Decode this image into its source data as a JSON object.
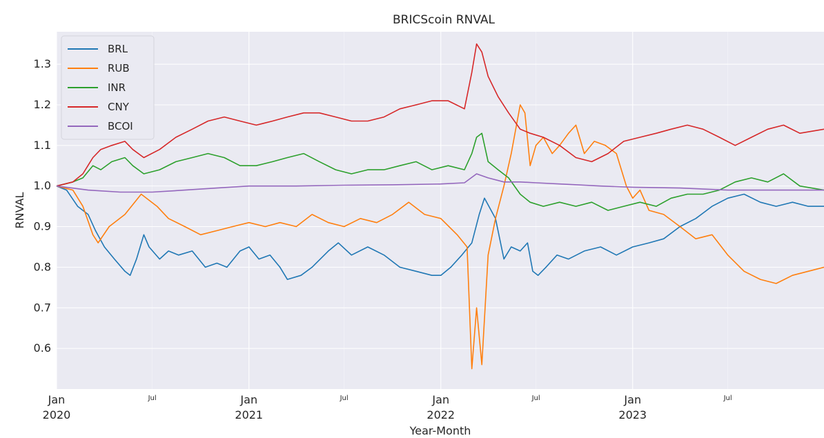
{
  "chart_data": {
    "type": "line",
    "title": "BRICScoin RNVAL",
    "xlabel": "Year-Month",
    "ylabel": "RNVAL",
    "xlim": [
      "2020-01-01",
      "2023-12-31"
    ],
    "ylim": [
      0.5,
      1.38
    ],
    "grid": true,
    "legend_position": "top-left",
    "y_ticks": [
      "0.6",
      "0.7",
      "0.8",
      "0.9",
      "1.0",
      "1.1",
      "1.2",
      "1.3"
    ],
    "x_major_ticks": [
      {
        "date": "2020-01-01",
        "line1": "Jan",
        "line2": "2020"
      },
      {
        "date": "2021-01-01",
        "line1": "Jan",
        "line2": "2021"
      },
      {
        "date": "2022-01-01",
        "line1": "Jan",
        "line2": "2022"
      },
      {
        "date": "2023-01-01",
        "line1": "Jan",
        "line2": "2023"
      }
    ],
    "x_minor_ticks": [
      {
        "date": "2020-07-01",
        "label": "Jul"
      },
      {
        "date": "2021-07-01",
        "label": "Jul"
      },
      {
        "date": "2022-07-01",
        "label": "Jul"
      },
      {
        "date": "2023-07-01",
        "label": "Jul"
      }
    ],
    "series": [
      {
        "name": "BRL",
        "color": "#1f77b4",
        "points": [
          [
            "2020-01-01",
            1.0
          ],
          [
            "2020-01-20",
            0.99
          ],
          [
            "2020-02-10",
            0.95
          ],
          [
            "2020-03-01",
            0.93
          ],
          [
            "2020-03-15",
            0.89
          ],
          [
            "2020-04-01",
            0.85
          ],
          [
            "2020-04-20",
            0.82
          ],
          [
            "2020-05-10",
            0.79
          ],
          [
            "2020-05-20",
            0.78
          ],
          [
            "2020-06-01",
            0.82
          ],
          [
            "2020-06-15",
            0.88
          ],
          [
            "2020-06-25",
            0.85
          ],
          [
            "2020-07-15",
            0.82
          ],
          [
            "2020-08-01",
            0.84
          ],
          [
            "2020-08-20",
            0.83
          ],
          [
            "2020-09-15",
            0.84
          ],
          [
            "2020-10-10",
            0.8
          ],
          [
            "2020-11-01",
            0.81
          ],
          [
            "2020-11-20",
            0.8
          ],
          [
            "2020-12-15",
            0.84
          ],
          [
            "2021-01-01",
            0.85
          ],
          [
            "2021-01-20",
            0.82
          ],
          [
            "2021-02-10",
            0.83
          ],
          [
            "2021-03-01",
            0.8
          ],
          [
            "2021-03-15",
            0.77
          ],
          [
            "2021-04-10",
            0.78
          ],
          [
            "2021-05-01",
            0.8
          ],
          [
            "2021-06-01",
            0.84
          ],
          [
            "2021-06-20",
            0.86
          ],
          [
            "2021-07-15",
            0.83
          ],
          [
            "2021-08-15",
            0.85
          ],
          [
            "2021-09-15",
            0.83
          ],
          [
            "2021-10-15",
            0.8
          ],
          [
            "2021-11-15",
            0.79
          ],
          [
            "2021-12-15",
            0.78
          ],
          [
            "2022-01-01",
            0.78
          ],
          [
            "2022-01-20",
            0.8
          ],
          [
            "2022-02-10",
            0.83
          ],
          [
            "2022-03-01",
            0.86
          ],
          [
            "2022-03-15",
            0.93
          ],
          [
            "2022-03-25",
            0.97
          ],
          [
            "2022-04-15",
            0.92
          ],
          [
            "2022-05-01",
            0.82
          ],
          [
            "2022-05-15",
            0.85
          ],
          [
            "2022-06-01",
            0.84
          ],
          [
            "2022-06-15",
            0.86
          ],
          [
            "2022-06-25",
            0.79
          ],
          [
            "2022-07-05",
            0.78
          ],
          [
            "2022-07-20",
            0.8
          ],
          [
            "2022-08-10",
            0.83
          ],
          [
            "2022-09-01",
            0.82
          ],
          [
            "2022-10-01",
            0.84
          ],
          [
            "2022-11-01",
            0.85
          ],
          [
            "2022-12-01",
            0.83
          ],
          [
            "2023-01-01",
            0.85
          ],
          [
            "2023-02-01",
            0.86
          ],
          [
            "2023-03-01",
            0.87
          ],
          [
            "2023-04-01",
            0.9
          ],
          [
            "2023-05-01",
            0.92
          ],
          [
            "2023-06-01",
            0.95
          ],
          [
            "2023-07-01",
            0.97
          ],
          [
            "2023-08-01",
            0.98
          ],
          [
            "2023-09-01",
            0.96
          ],
          [
            "2023-10-01",
            0.95
          ],
          [
            "2023-11-01",
            0.96
          ],
          [
            "2023-12-01",
            0.95
          ],
          [
            "2023-12-31",
            0.95
          ]
        ]
      },
      {
        "name": "RUB",
        "color": "#ff7f0e",
        "points": [
          [
            "2020-01-01",
            1.0
          ],
          [
            "2020-02-01",
            0.99
          ],
          [
            "2020-02-20",
            0.95
          ],
          [
            "2020-03-10",
            0.88
          ],
          [
            "2020-03-20",
            0.86
          ],
          [
            "2020-04-10",
            0.9
          ],
          [
            "2020-05-10",
            0.93
          ],
          [
            "2020-06-10",
            0.98
          ],
          [
            "2020-07-10",
            0.95
          ],
          [
            "2020-08-01",
            0.92
          ],
          [
            "2020-09-01",
            0.9
          ],
          [
            "2020-10-01",
            0.88
          ],
          [
            "2020-11-01",
            0.89
          ],
          [
            "2020-12-01",
            0.9
          ],
          [
            "2021-01-01",
            0.91
          ],
          [
            "2021-02-01",
            0.9
          ],
          [
            "2021-03-01",
            0.91
          ],
          [
            "2021-04-01",
            0.9
          ],
          [
            "2021-05-01",
            0.93
          ],
          [
            "2021-06-01",
            0.91
          ],
          [
            "2021-07-01",
            0.9
          ],
          [
            "2021-08-01",
            0.92
          ],
          [
            "2021-09-01",
            0.91
          ],
          [
            "2021-10-01",
            0.93
          ],
          [
            "2021-11-01",
            0.96
          ],
          [
            "2021-12-01",
            0.93
          ],
          [
            "2022-01-01",
            0.92
          ],
          [
            "2022-02-01",
            0.88
          ],
          [
            "2022-02-20",
            0.85
          ],
          [
            "2022-03-01",
            0.55
          ],
          [
            "2022-03-10",
            0.7
          ],
          [
            "2022-03-20",
            0.56
          ],
          [
            "2022-04-01",
            0.83
          ],
          [
            "2022-04-15",
            0.92
          ],
          [
            "2022-05-01",
            1.0
          ],
          [
            "2022-05-15",
            1.08
          ],
          [
            "2022-06-01",
            1.2
          ],
          [
            "2022-06-10",
            1.18
          ],
          [
            "2022-06-20",
            1.05
          ],
          [
            "2022-07-01",
            1.1
          ],
          [
            "2022-07-15",
            1.12
          ],
          [
            "2022-08-01",
            1.08
          ],
          [
            "2022-08-15",
            1.1
          ],
          [
            "2022-09-01",
            1.13
          ],
          [
            "2022-09-15",
            1.15
          ],
          [
            "2022-10-01",
            1.08
          ],
          [
            "2022-10-20",
            1.11
          ],
          [
            "2022-11-10",
            1.1
          ],
          [
            "2022-12-01",
            1.08
          ],
          [
            "2022-12-20",
            1.0
          ],
          [
            "2023-01-01",
            0.97
          ],
          [
            "2023-01-15",
            0.99
          ],
          [
            "2023-02-01",
            0.94
          ],
          [
            "2023-03-01",
            0.93
          ],
          [
            "2023-04-01",
            0.9
          ],
          [
            "2023-05-01",
            0.87
          ],
          [
            "2023-06-01",
            0.88
          ],
          [
            "2023-07-01",
            0.83
          ],
          [
            "2023-08-01",
            0.79
          ],
          [
            "2023-09-01",
            0.77
          ],
          [
            "2023-10-01",
            0.76
          ],
          [
            "2023-11-01",
            0.78
          ],
          [
            "2023-12-01",
            0.79
          ],
          [
            "2023-12-31",
            0.8
          ]
        ]
      },
      {
        "name": "INR",
        "color": "#2ca02c",
        "points": [
          [
            "2020-01-01",
            1.0
          ],
          [
            "2020-02-01",
            1.01
          ],
          [
            "2020-02-20",
            1.02
          ],
          [
            "2020-03-10",
            1.05
          ],
          [
            "2020-03-25",
            1.04
          ],
          [
            "2020-04-15",
            1.06
          ],
          [
            "2020-05-10",
            1.07
          ],
          [
            "2020-05-25",
            1.05
          ],
          [
            "2020-06-15",
            1.03
          ],
          [
            "2020-07-15",
            1.04
          ],
          [
            "2020-08-15",
            1.06
          ],
          [
            "2020-09-15",
            1.07
          ],
          [
            "2020-10-15",
            1.08
          ],
          [
            "2020-11-15",
            1.07
          ],
          [
            "2020-12-15",
            1.05
          ],
          [
            "2021-01-15",
            1.05
          ],
          [
            "2021-02-15",
            1.06
          ],
          [
            "2021-03-15",
            1.07
          ],
          [
            "2021-04-15",
            1.08
          ],
          [
            "2021-05-15",
            1.06
          ],
          [
            "2021-06-15",
            1.04
          ],
          [
            "2021-07-15",
            1.03
          ],
          [
            "2021-08-15",
            1.04
          ],
          [
            "2021-09-15",
            1.04
          ],
          [
            "2021-10-15",
            1.05
          ],
          [
            "2021-11-15",
            1.06
          ],
          [
            "2021-12-15",
            1.04
          ],
          [
            "2022-01-15",
            1.05
          ],
          [
            "2022-02-15",
            1.04
          ],
          [
            "2022-03-01",
            1.08
          ],
          [
            "2022-03-10",
            1.12
          ],
          [
            "2022-03-20",
            1.13
          ],
          [
            "2022-04-01",
            1.06
          ],
          [
            "2022-04-20",
            1.04
          ],
          [
            "2022-05-10",
            1.02
          ],
          [
            "2022-06-01",
            0.98
          ],
          [
            "2022-06-20",
            0.96
          ],
          [
            "2022-07-15",
            0.95
          ],
          [
            "2022-08-15",
            0.96
          ],
          [
            "2022-09-15",
            0.95
          ],
          [
            "2022-10-15",
            0.96
          ],
          [
            "2022-11-15",
            0.94
          ],
          [
            "2022-12-15",
            0.95
          ],
          [
            "2023-01-15",
            0.96
          ],
          [
            "2023-02-15",
            0.95
          ],
          [
            "2023-03-15",
            0.97
          ],
          [
            "2023-04-15",
            0.98
          ],
          [
            "2023-05-15",
            0.98
          ],
          [
            "2023-06-15",
            0.99
          ],
          [
            "2023-07-15",
            1.01
          ],
          [
            "2023-08-15",
            1.02
          ],
          [
            "2023-09-15",
            1.01
          ],
          [
            "2023-10-15",
            1.03
          ],
          [
            "2023-11-15",
            1.0
          ],
          [
            "2023-12-31",
            0.99
          ]
        ]
      },
      {
        "name": "CNY",
        "color": "#d62728",
        "points": [
          [
            "2020-01-01",
            1.0
          ],
          [
            "2020-02-01",
            1.01
          ],
          [
            "2020-02-20",
            1.03
          ],
          [
            "2020-03-10",
            1.07
          ],
          [
            "2020-03-25",
            1.09
          ],
          [
            "2020-04-15",
            1.1
          ],
          [
            "2020-05-10",
            1.11
          ],
          [
            "2020-05-25",
            1.09
          ],
          [
            "2020-06-15",
            1.07
          ],
          [
            "2020-07-15",
            1.09
          ],
          [
            "2020-08-15",
            1.12
          ],
          [
            "2020-09-15",
            1.14
          ],
          [
            "2020-10-15",
            1.16
          ],
          [
            "2020-11-15",
            1.17
          ],
          [
            "2020-12-15",
            1.16
          ],
          [
            "2021-01-15",
            1.15
          ],
          [
            "2021-02-15",
            1.16
          ],
          [
            "2021-03-15",
            1.17
          ],
          [
            "2021-04-15",
            1.18
          ],
          [
            "2021-05-15",
            1.18
          ],
          [
            "2021-06-15",
            1.17
          ],
          [
            "2021-07-15",
            1.16
          ],
          [
            "2021-08-15",
            1.16
          ],
          [
            "2021-09-15",
            1.17
          ],
          [
            "2021-10-15",
            1.19
          ],
          [
            "2021-11-15",
            1.2
          ],
          [
            "2021-12-15",
            1.21
          ],
          [
            "2022-01-15",
            1.21
          ],
          [
            "2022-02-15",
            1.19
          ],
          [
            "2022-03-01",
            1.28
          ],
          [
            "2022-03-10",
            1.35
          ],
          [
            "2022-03-20",
            1.33
          ],
          [
            "2022-04-01",
            1.27
          ],
          [
            "2022-04-20",
            1.22
          ],
          [
            "2022-05-10",
            1.18
          ],
          [
            "2022-06-01",
            1.14
          ],
          [
            "2022-06-20",
            1.13
          ],
          [
            "2022-07-15",
            1.12
          ],
          [
            "2022-08-15",
            1.1
          ],
          [
            "2022-09-15",
            1.07
          ],
          [
            "2022-10-15",
            1.06
          ],
          [
            "2022-11-15",
            1.08
          ],
          [
            "2022-12-15",
            1.11
          ],
          [
            "2023-01-15",
            1.12
          ],
          [
            "2023-02-15",
            1.13
          ],
          [
            "2023-03-15",
            1.14
          ],
          [
            "2023-04-15",
            1.15
          ],
          [
            "2023-05-15",
            1.14
          ],
          [
            "2023-06-15",
            1.12
          ],
          [
            "2023-07-15",
            1.1
          ],
          [
            "2023-08-15",
            1.12
          ],
          [
            "2023-09-15",
            1.14
          ],
          [
            "2023-10-15",
            1.15
          ],
          [
            "2023-11-15",
            1.13
          ],
          [
            "2023-12-31",
            1.14
          ]
        ]
      },
      {
        "name": "BCOI",
        "color": "#9467bd",
        "points": [
          [
            "2020-01-01",
            1.0
          ],
          [
            "2020-03-01",
            0.99
          ],
          [
            "2020-05-01",
            0.985
          ],
          [
            "2020-07-01",
            0.985
          ],
          [
            "2020-09-01",
            0.99
          ],
          [
            "2020-11-01",
            0.995
          ],
          [
            "2021-01-01",
            1.0
          ],
          [
            "2021-04-01",
            1.0
          ],
          [
            "2021-07-01",
            1.002
          ],
          [
            "2021-10-01",
            1.003
          ],
          [
            "2022-01-01",
            1.005
          ],
          [
            "2022-02-15",
            1.008
          ],
          [
            "2022-03-10",
            1.03
          ],
          [
            "2022-04-01",
            1.02
          ],
          [
            "2022-05-01",
            1.01
          ],
          [
            "2022-06-01",
            1.01
          ],
          [
            "2022-07-01",
            1.008
          ],
          [
            "2022-09-01",
            1.004
          ],
          [
            "2022-11-01",
            1.0
          ],
          [
            "2023-01-01",
            0.997
          ],
          [
            "2023-04-01",
            0.995
          ],
          [
            "2023-07-01",
            0.99
          ],
          [
            "2023-10-01",
            0.99
          ],
          [
            "2023-12-31",
            0.99
          ]
        ]
      }
    ]
  }
}
